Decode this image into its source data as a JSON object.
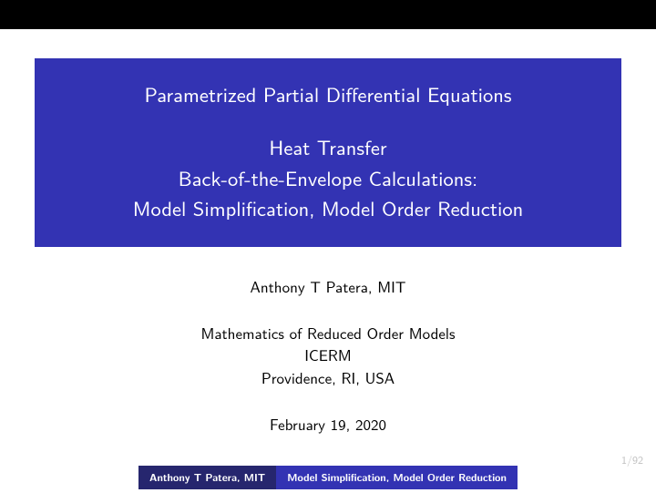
{
  "theme": {
    "title_bg": "#3333b3",
    "topbar_bg": "#000000",
    "footer_author_bg": "#26266e",
    "footer_title_bg": "#3333b3",
    "text_color": "#000000",
    "title_text_color": "#ffffff",
    "page_bg": "#ffffff",
    "pagenum_color": "#c0c0c0",
    "title_fontsize": 22.5,
    "body_fontsize": 17,
    "footer_fontsize": 11.5
  },
  "title": {
    "line1": "Parametrized Partial Differential Equations",
    "line2": "Heat Transfer",
    "line3": "Back-of-the-Envelope Calculations:",
    "line4": "Model Simplification, Model Order Reduction"
  },
  "author": "Anthony T Patera, MIT",
  "venue": {
    "line1": "Mathematics of Reduced Order Models",
    "line2": "ICERM",
    "line3": "Providence, RI, USA"
  },
  "date": "February 19, 2020",
  "footer": {
    "author": "Anthony T Patera, MIT",
    "title": "Model Simplification, Model Order Reduction"
  },
  "page": "1/92"
}
